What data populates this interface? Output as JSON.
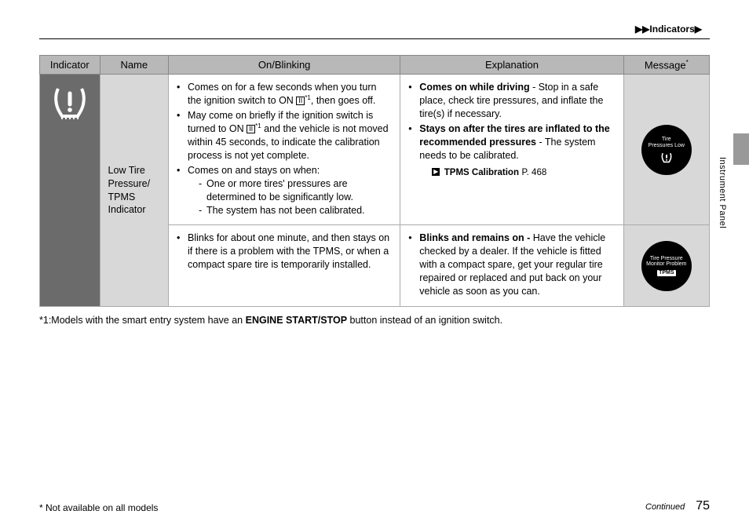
{
  "breadcrumb": {
    "text": "Indicators"
  },
  "side_label": "Instrument Panel",
  "table": {
    "headers": {
      "indicator": "Indicator",
      "name": "Name",
      "onblinking": "On/Blinking",
      "explanation": "Explanation",
      "message": "Message",
      "message_sup": "*"
    },
    "col_widths": {
      "indicator": 70,
      "name": 80,
      "onblinking": 270,
      "explanation": 260,
      "message": 100
    },
    "row1": {
      "name": "Low Tire Pressure/\nTPMS Indicator",
      "on_items": [
        {
          "pre": "Comes on for a few seconds when you turn the ignition switch to ON ",
          "ign": "II",
          "sup": "*1",
          "post": ", then goes off."
        },
        {
          "pre": "May come on briefly if the ignition switch is turned to ON ",
          "ign": "II",
          "sup": "*1",
          "post": " and the vehicle is not moved within 45 seconds, to indicate the calibration process is not yet complete."
        },
        {
          "plain": "Comes on and stays on when:",
          "sub": [
            "One or more tires' pressures are determined to be significantly low.",
            "The system has not been calibrated."
          ]
        }
      ],
      "exp_items": [
        {
          "bold": "Comes on while driving",
          "rest": " - Stop in a safe place, check tire pressures, and inflate the tire(s) if necessary."
        },
        {
          "bold": "Stays on after the tires are inflated to the recommended pressures",
          "rest": " - The system needs to be calibrated."
        }
      ],
      "xref": {
        "label": "TPMS Calibration",
        "page": "P. 468"
      },
      "msg_icon": {
        "line1": "Tire",
        "line2": "Pressures Low"
      }
    },
    "row2": {
      "on_item": "Blinks for about one minute, and then stays on if there is a problem with the TPMS, or when a compact spare tire is temporarily installed.",
      "exp_item": {
        "bold": "Blinks and remains on - ",
        "rest": "Have the vehicle checked by a dealer. If the vehicle is fitted with a compact spare, get your regular tire repaired or replaced and put back on your vehicle as soon as you can."
      },
      "msg_icon": {
        "line1": "Tire Pressure",
        "line2": "Monitor Problem",
        "badge": "TPMS"
      }
    }
  },
  "footnote1": {
    "pre": "*1:Models with the smart entry system have an ",
    "bold": "ENGINE START/STOP",
    "post": " button instead of an ignition switch."
  },
  "footer": {
    "left": "* Not available on all models",
    "continued": "Continued",
    "page": "75"
  }
}
